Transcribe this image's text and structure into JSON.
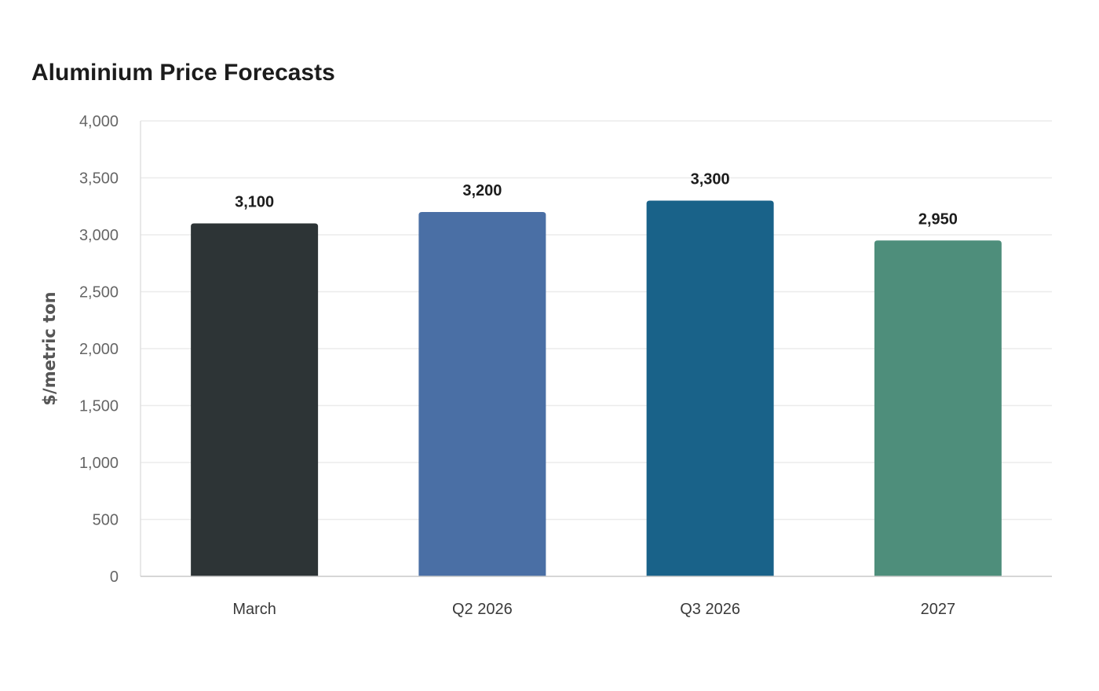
{
  "chart_data": {
    "type": "bar",
    "title": "Aluminium Price Forecasts",
    "xlabel": "",
    "ylabel": "$/metric ton",
    "categories": [
      "March",
      "Q2 2026",
      "Q3 2026",
      "2027"
    ],
    "values": [
      3100,
      3200,
      3300,
      2950
    ],
    "value_labels": [
      "3,100",
      "3,200",
      "3,300",
      "2,950"
    ],
    "bar_colors": [
      "#2d3436",
      "#4a6fa5",
      "#196289",
      "#4e8e7b"
    ],
    "ylim": [
      0,
      4000
    ],
    "yticks": [
      0,
      500,
      1000,
      1500,
      2000,
      2500,
      3000,
      3500,
      4000
    ],
    "ytick_labels": [
      "0",
      "500",
      "1,000",
      "1,500",
      "2,000",
      "2,500",
      "3,000",
      "3,500",
      "4,000"
    ],
    "grid": true,
    "legend": "none"
  }
}
